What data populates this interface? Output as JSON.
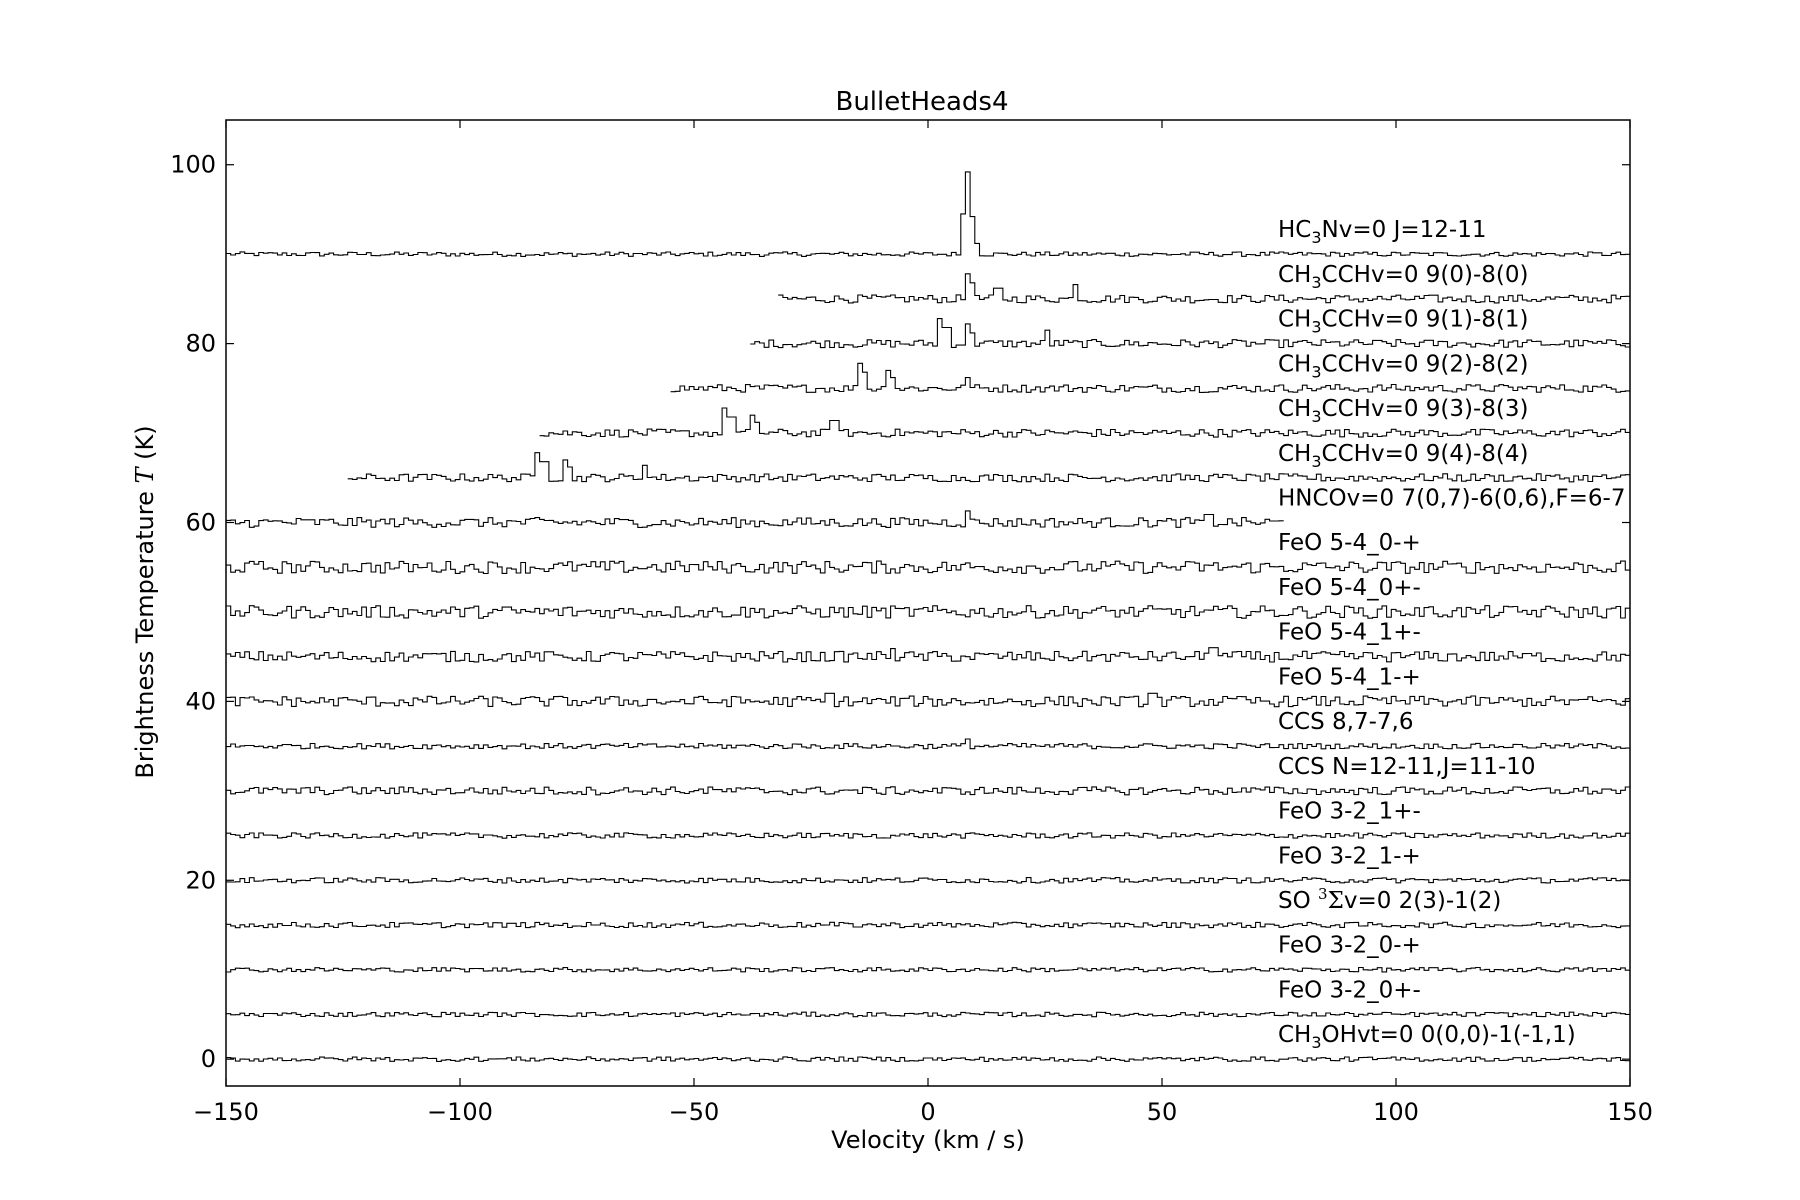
{
  "chart_data": {
    "type": "line",
    "title": "BulletHeads4",
    "xlabel": "Velocity (km / s)",
    "ylabel": "Brightness Temperature",
    "ylabel_symbol": "T",
    "ylabel_unit": "(K)",
    "xlim": [
      -150,
      150
    ],
    "ylim": [
      -3,
      105
    ],
    "xticks": [
      -150,
      -100,
      -50,
      0,
      50,
      100,
      150
    ],
    "xtick_labels": [
      "−150",
      "−100",
      "−50",
      "0",
      "50",
      "100",
      "150"
    ],
    "yticks": [
      0,
      20,
      40,
      60,
      80,
      100
    ],
    "ytick_labels": [
      "0",
      "20",
      "40",
      "60",
      "80",
      "100"
    ],
    "grid": false,
    "legend": "none",
    "series": [
      {
        "base": "HC",
        "sub": "3",
        "rest": "Nv=0 J=12-11",
        "offset": 90,
        "x_range": [
          -150,
          150
        ],
        "noise": 0.25,
        "peaks": [
          [
            7.5,
            4.5
          ],
          [
            8.5,
            9.2
          ],
          [
            9.5,
            4.2
          ],
          [
            10.5,
            1.2
          ]
        ]
      },
      {
        "base": "CH",
        "sub": "3",
        "rest": "CCHv=0 9(0)-8(0)",
        "offset": 85,
        "x_range": [
          -32,
          150
        ],
        "noise": 0.45,
        "peaks": [
          [
            8.5,
            2.8
          ],
          [
            9.5,
            1.8
          ],
          [
            14.2,
            2.2
          ],
          [
            15,
            1.2
          ],
          [
            31.5,
            1.6
          ]
        ]
      },
      {
        "base": "CH",
        "sub": "3",
        "rest": "CCHv=0 9(1)-8(1)",
        "offset": 80,
        "x_range": [
          -38,
          150
        ],
        "noise": 0.45,
        "peaks": [
          [
            3,
            2.8
          ],
          [
            4,
            1.8
          ],
          [
            8.5,
            2.2
          ],
          [
            9.3,
            1.2
          ],
          [
            25.5,
            1.5
          ]
        ]
      },
      {
        "base": "CH",
        "sub": "3",
        "rest": "CCHv=0 9(2)-8(2)",
        "offset": 75,
        "x_range": [
          -55,
          150
        ],
        "noise": 0.45,
        "peaks": [
          [
            -14.5,
            2.8
          ],
          [
            -13.5,
            1.8
          ],
          [
            -8.5,
            2.0
          ],
          [
            -7.5,
            1.2
          ],
          [
            8.5,
            1.2
          ]
        ]
      },
      {
        "base": "CH",
        "sub": "3",
        "rest": "CCHv=0 9(3)-8(3)",
        "offset": 70,
        "x_range": [
          -83,
          150
        ],
        "noise": 0.45,
        "peaks": [
          [
            -43,
            2.8
          ],
          [
            -42,
            1.8
          ],
          [
            -37.5,
            2.0
          ],
          [
            -36.5,
            1.2
          ],
          [
            -20,
            1.4
          ]
        ]
      },
      {
        "base": "CH",
        "sub": "3",
        "rest": "CCHv=0 9(4)-8(4)",
        "offset": 65,
        "x_range": [
          -124,
          150
        ],
        "noise": 0.45,
        "peaks": [
          [
            -83,
            2.8
          ],
          [
            -82,
            1.8
          ],
          [
            -77.5,
            2.0
          ],
          [
            -76.5,
            1.2
          ],
          [
            -60.5,
            1.4
          ]
        ]
      },
      {
        "base": "HNCOv=0 7(0,7)-6(0,6),F=6-7",
        "sub": "",
        "rest": "",
        "offset": 60,
        "x_range": [
          -150,
          76
        ],
        "noise": 0.55,
        "peaks": [
          [
            8.5,
            1.3
          ],
          [
            60,
            0.9
          ]
        ]
      },
      {
        "base": "FeO 5-4_0-+",
        "sub": "",
        "rest": "",
        "offset": 55,
        "x_range": [
          -150,
          150
        ],
        "noise": 0.7,
        "peaks": []
      },
      {
        "base": "FeO 5-4_0+-",
        "sub": "",
        "rest": "",
        "offset": 50,
        "x_range": [
          -150,
          150
        ],
        "noise": 0.7,
        "peaks": []
      },
      {
        "base": "FeO 5-4_1+-",
        "sub": "",
        "rest": "",
        "offset": 45,
        "x_range": [
          -150,
          150
        ],
        "noise": 0.6,
        "peaks": [
          [
            -7.5,
            0.9
          ],
          [
            61,
            1.0
          ]
        ]
      },
      {
        "base": "FeO 5-4_1-+",
        "sub": "",
        "rest": "",
        "offset": 40,
        "x_range": [
          -150,
          150
        ],
        "noise": 0.6,
        "peaks": [
          [
            -21,
            0.9
          ],
          [
            48,
            0.9
          ]
        ]
      },
      {
        "base": "CCS 8,7-7,6",
        "sub": "",
        "rest": "",
        "offset": 35,
        "x_range": [
          -150,
          150
        ],
        "noise": 0.3,
        "peaks": [
          [
            8.5,
            0.8
          ]
        ]
      },
      {
        "base": "CCS N=12-11,J=11-10",
        "sub": "",
        "rest": "",
        "offset": 30,
        "x_range": [
          -150,
          150
        ],
        "noise": 0.45,
        "peaks": []
      },
      {
        "base": "FeO 3-2_1+-",
        "sub": "",
        "rest": "",
        "offset": 25,
        "x_range": [
          -150,
          150
        ],
        "noise": 0.3,
        "peaks": []
      },
      {
        "base": "FeO 3-2_1-+",
        "sub": "",
        "rest": "",
        "offset": 20,
        "x_range": [
          -150,
          150
        ],
        "noise": 0.3,
        "peaks": []
      },
      {
        "base": "SO ",
        "sup": "3",
        "sigma": "Σ",
        "rest": "v=0 2(3)-1(2)",
        "sub": "",
        "offset": 15,
        "x_range": [
          -150,
          150
        ],
        "noise": 0.3,
        "peaks": []
      },
      {
        "base": "FeO 3-2_0-+",
        "sub": "",
        "rest": "",
        "offset": 10,
        "x_range": [
          -150,
          150
        ],
        "noise": 0.25,
        "peaks": []
      },
      {
        "base": "FeO 3-2_0+-",
        "sub": "",
        "rest": "",
        "offset": 5,
        "x_range": [
          -150,
          150
        ],
        "noise": 0.25,
        "peaks": []
      },
      {
        "base": "CH",
        "sub": "3",
        "rest": "OHvt=0 0(0,0)-1(-1,1)",
        "offset": 0,
        "x_range": [
          -150,
          150
        ],
        "noise": 0.25,
        "peaks": []
      }
    ]
  }
}
